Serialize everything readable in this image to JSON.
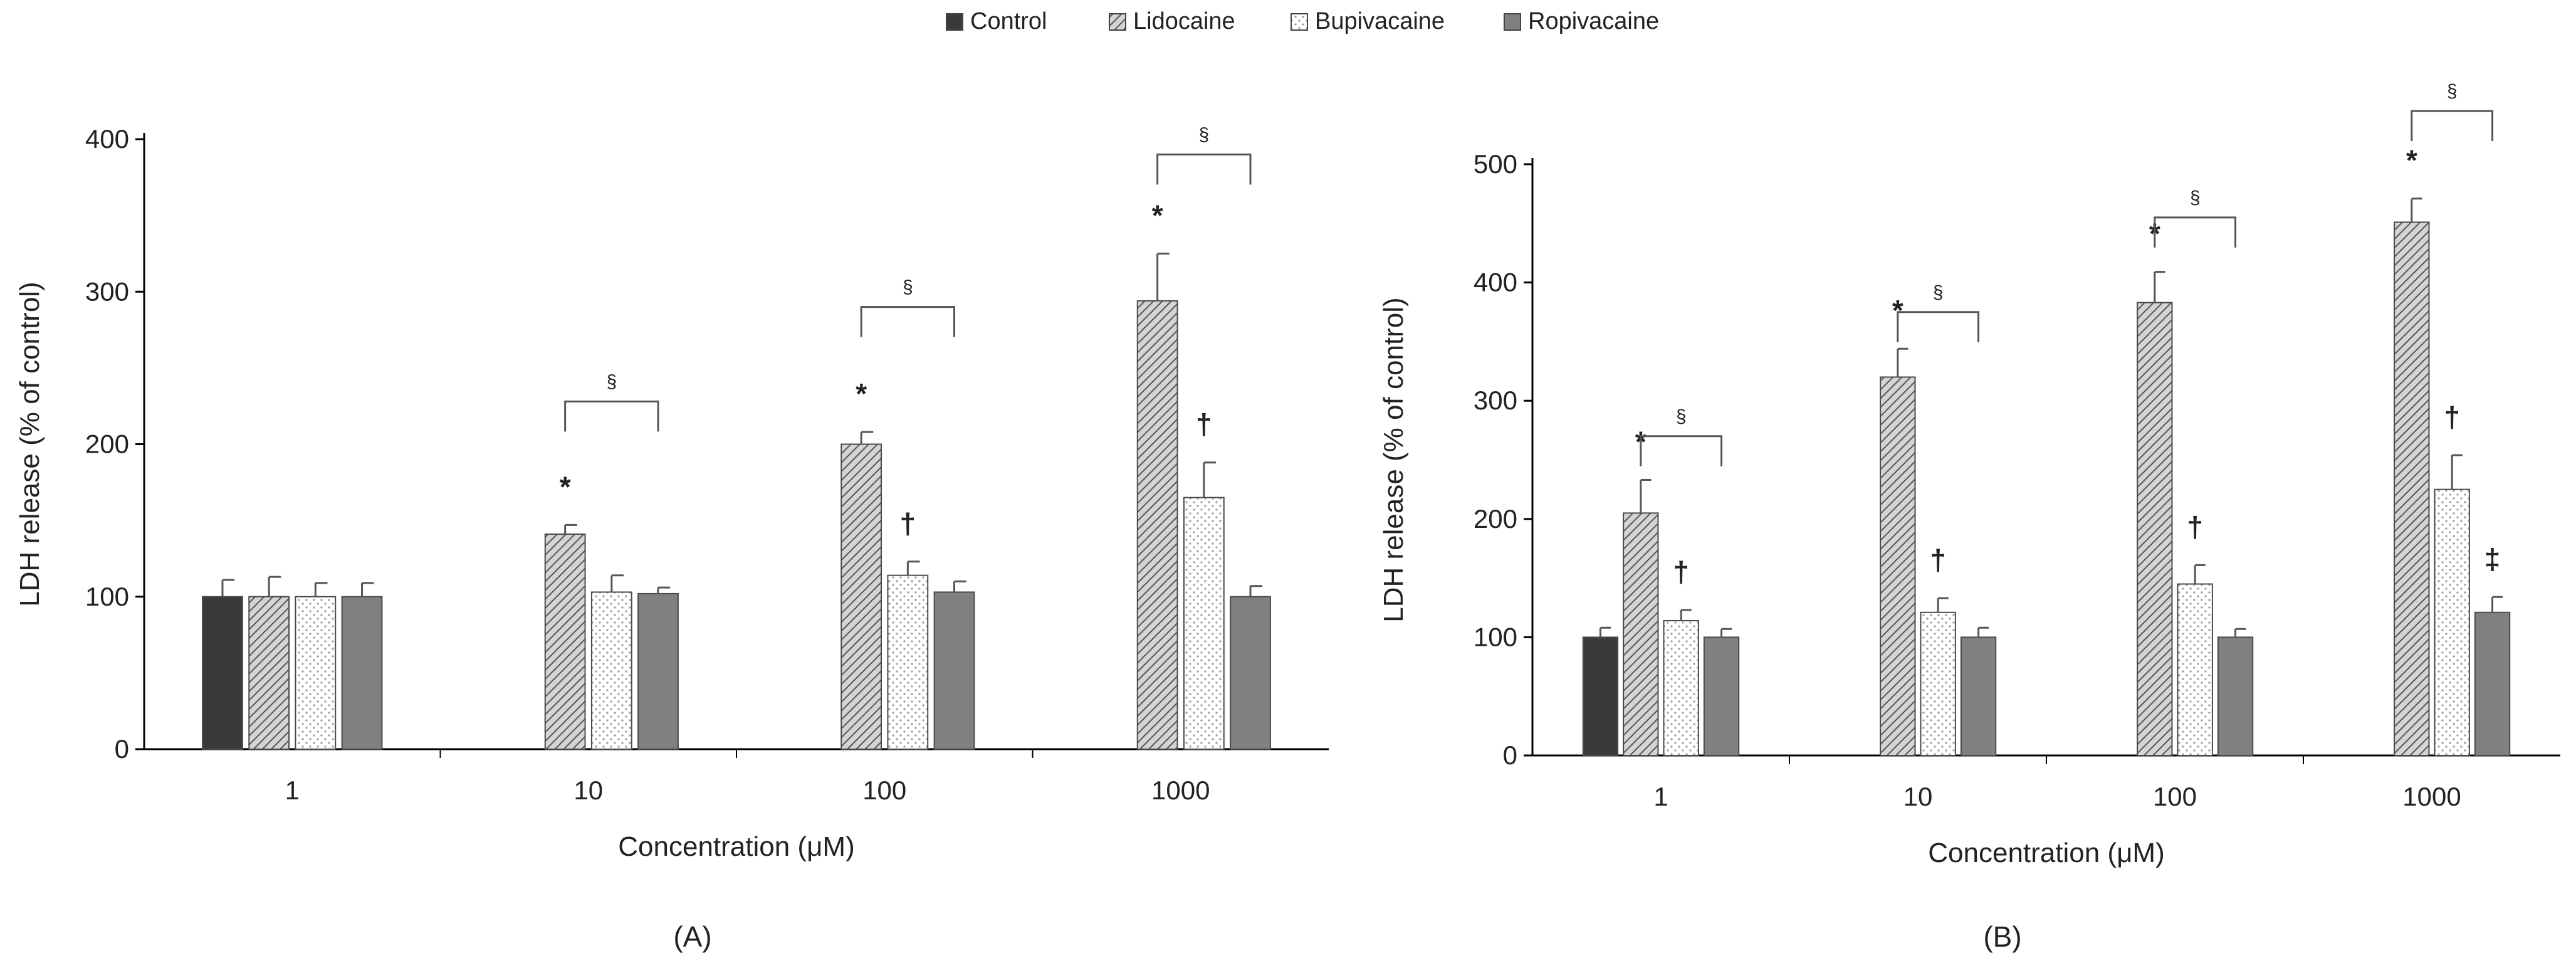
{
  "legend": {
    "entries": [
      {
        "name": "Control",
        "color": "#3a3a3a",
        "pattern": "solid"
      },
      {
        "name": "Lidocaine",
        "color": "#cfcfcf",
        "pattern": "diagonal"
      },
      {
        "name": "Bupivacaine",
        "color": "#ffffff",
        "pattern": "dots"
      },
      {
        "name": "Ropivacaine",
        "color": "#808080",
        "pattern": "solid"
      }
    ]
  },
  "chart_data": [
    {
      "type": "bar",
      "panel_label": "(A)",
      "xlabel": "Concentration (μM)",
      "ylabel": "LDH release (% of control)",
      "ylim": [
        0,
        400
      ],
      "yticks": [
        0,
        100,
        200,
        300,
        400
      ],
      "categories": [
        "1",
        "10",
        "100",
        "1000"
      ],
      "series": [
        {
          "name": "Control",
          "values": [
            100,
            null,
            null,
            null
          ],
          "errors": [
            11,
            null,
            null,
            null
          ]
        },
        {
          "name": "Lidocaine",
          "values": [
            100,
            141,
            200,
            294
          ],
          "errors": [
            13,
            6,
            8,
            31
          ]
        },
        {
          "name": "Bupivacaine",
          "values": [
            100,
            103,
            114,
            165
          ],
          "errors": [
            9,
            11,
            9,
            23
          ]
        },
        {
          "name": "Ropivacaine",
          "values": [
            100,
            102,
            103,
            100
          ],
          "errors": [
            9,
            4,
            7,
            7
          ]
        }
      ],
      "annotations": [
        {
          "category": "10",
          "series": "Lidocaine",
          "symbol": "*"
        },
        {
          "category": "100",
          "series": "Lidocaine",
          "symbol": "*"
        },
        {
          "category": "100",
          "series": "Bupivacaine",
          "symbol": "†"
        },
        {
          "category": "1000",
          "series": "Lidocaine",
          "symbol": "*"
        },
        {
          "category": "1000",
          "series": "Bupivacaine",
          "symbol": "†"
        }
      ],
      "brackets": [
        {
          "category": "10",
          "from": "Lidocaine",
          "to": "Ropivacaine",
          "label": "§",
          "level": 228
        },
        {
          "category": "100",
          "from": "Lidocaine",
          "to": "Ropivacaine",
          "label": "§",
          "level": 290
        },
        {
          "category": "1000",
          "from": "Lidocaine",
          "to": "Ropivacaine",
          "label": "§",
          "level": 390
        }
      ]
    },
    {
      "type": "bar",
      "panel_label": "(B)",
      "xlabel": "Concentration (μM)",
      "ylabel": "LDH release (% of control)",
      "ylim": [
        0,
        500
      ],
      "yticks": [
        0,
        100,
        200,
        300,
        400,
        500
      ],
      "categories": [
        "1",
        "10",
        "100",
        "1000"
      ],
      "series": [
        {
          "name": "Control",
          "values": [
            100,
            null,
            null,
            null
          ],
          "errors": [
            8,
            null,
            null,
            null
          ]
        },
        {
          "name": "Lidocaine",
          "values": [
            205,
            320,
            383,
            451
          ],
          "errors": [
            28,
            24,
            26,
            20
          ]
        },
        {
          "name": "Bupivacaine",
          "values": [
            114,
            121,
            145,
            225
          ],
          "errors": [
            9,
            12,
            16,
            29
          ]
        },
        {
          "name": "Ropivacaine",
          "values": [
            100,
            100,
            100,
            121
          ],
          "errors": [
            7,
            8,
            7,
            13
          ]
        }
      ],
      "annotations": [
        {
          "category": "1",
          "series": "Lidocaine",
          "symbol": "*"
        },
        {
          "category": "1",
          "series": "Bupivacaine",
          "symbol": "†"
        },
        {
          "category": "10",
          "series": "Lidocaine",
          "symbol": "*"
        },
        {
          "category": "10",
          "series": "Bupivacaine",
          "symbol": "†"
        },
        {
          "category": "100",
          "series": "Lidocaine",
          "symbol": "*"
        },
        {
          "category": "100",
          "series": "Bupivacaine",
          "symbol": "†"
        },
        {
          "category": "1000",
          "series": "Lidocaine",
          "symbol": "*"
        },
        {
          "category": "1000",
          "series": "Bupivacaine",
          "symbol": "†"
        },
        {
          "category": "1000",
          "series": "Ropivacaine",
          "symbol": "‡"
        }
      ],
      "brackets": [
        {
          "category": "1",
          "from": "Lidocaine",
          "to": "Ropivacaine",
          "label": "§",
          "level": 270
        },
        {
          "category": "10",
          "from": "Lidocaine",
          "to": "Ropivacaine",
          "label": "§",
          "level": 375
        },
        {
          "category": "100",
          "from": "Lidocaine",
          "to": "Ropivacaine",
          "label": "§",
          "level": 455
        },
        {
          "category": "1000",
          "from": "Lidocaine",
          "to": "Ropivacaine",
          "label": "§",
          "level": 545
        }
      ]
    }
  ]
}
